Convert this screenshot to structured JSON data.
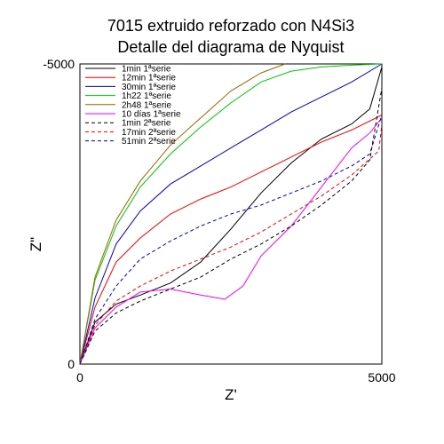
{
  "chart_data": {
    "type": "line",
    "title": [
      "7015 extruido reforzado con N4Si3",
      "Detalle del diagrama de Nyquist"
    ],
    "xlabel": "Z'",
    "ylabel": "Z\"",
    "xlim": [
      0,
      5000
    ],
    "ylim": [
      0,
      -5000
    ],
    "x_ticks": [
      "0",
      "5000"
    ],
    "y_ticks": [
      "0",
      "-5000"
    ],
    "grid": false,
    "legend_position": "top-left",
    "series": [
      {
        "name": "1min 1ªserie",
        "color": "#000000",
        "dash": "solid",
        "points": [
          [
            0,
            0
          ],
          [
            250,
            -700
          ],
          [
            600,
            -1000
          ],
          [
            1000,
            -1150
          ],
          [
            1500,
            -1350
          ],
          [
            2000,
            -1700
          ],
          [
            2500,
            -2250
          ],
          [
            3000,
            -2850
          ],
          [
            3500,
            -3350
          ],
          [
            4000,
            -3750
          ],
          [
            4500,
            -4000
          ],
          [
            4800,
            -4250
          ],
          [
            5000,
            -4950
          ]
        ]
      },
      {
        "name": "12min 1ªserie",
        "color": "#ff0000",
        "dash": "solid",
        "points": [
          [
            0,
            0
          ],
          [
            250,
            -950
          ],
          [
            600,
            -1700
          ],
          [
            1000,
            -2100
          ],
          [
            1500,
            -2500
          ],
          [
            2000,
            -2750
          ],
          [
            2500,
            -2950
          ],
          [
            3000,
            -3200
          ],
          [
            3500,
            -3450
          ],
          [
            4000,
            -3700
          ],
          [
            4500,
            -3900
          ],
          [
            5000,
            -4150
          ]
        ]
      },
      {
        "name": "30min 1ªserie",
        "color": "#0000cc",
        "dash": "solid",
        "points": [
          [
            0,
            0
          ],
          [
            250,
            -1100
          ],
          [
            600,
            -2000
          ],
          [
            1000,
            -2550
          ],
          [
            1500,
            -3000
          ],
          [
            2000,
            -3300
          ],
          [
            2500,
            -3600
          ],
          [
            3000,
            -3900
          ],
          [
            3500,
            -4200
          ],
          [
            4000,
            -4450
          ],
          [
            4500,
            -4700
          ],
          [
            5000,
            -5000
          ]
        ]
      },
      {
        "name": "1h22 1ªserie",
        "color": "#00cc00",
        "dash": "solid",
        "points": [
          [
            0,
            0
          ],
          [
            250,
            -1400
          ],
          [
            600,
            -2300
          ],
          [
            1000,
            -2950
          ],
          [
            1500,
            -3500
          ],
          [
            2000,
            -3950
          ],
          [
            2500,
            -4350
          ],
          [
            3000,
            -4700
          ],
          [
            3500,
            -4880
          ],
          [
            4000,
            -4950
          ],
          [
            4500,
            -4980
          ],
          [
            5000,
            -5000
          ]
        ]
      },
      {
        "name": "2h48 1ªserie",
        "color": "#996600",
        "dash": "solid",
        "points": [
          [
            0,
            0
          ],
          [
            250,
            -1450
          ],
          [
            600,
            -2400
          ],
          [
            1000,
            -3050
          ],
          [
            1500,
            -3650
          ],
          [
            2000,
            -4100
          ],
          [
            2500,
            -4550
          ],
          [
            3000,
            -4850
          ],
          [
            3400,
            -5000
          ]
        ]
      },
      {
        "name": "10 días 1ªserie",
        "color": "#ff00ff",
        "dash": "solid",
        "points": [
          [
            0,
            0
          ],
          [
            250,
            -600
          ],
          [
            600,
            -950
          ],
          [
            1000,
            -1200
          ],
          [
            1500,
            -1250
          ],
          [
            2000,
            -1150
          ],
          [
            2400,
            -1080
          ],
          [
            2700,
            -1300
          ],
          [
            3000,
            -1800
          ],
          [
            3500,
            -2300
          ],
          [
            4000,
            -2950
          ],
          [
            4500,
            -3600
          ],
          [
            4800,
            -3850
          ],
          [
            5000,
            -4100
          ]
        ]
      },
      {
        "name": "1min 2ªserie",
        "color": "#000000",
        "dash": "dashed",
        "points": [
          [
            0,
            0
          ],
          [
            250,
            -550
          ],
          [
            600,
            -850
          ],
          [
            1000,
            -1050
          ],
          [
            1500,
            -1250
          ],
          [
            2000,
            -1450
          ],
          [
            2500,
            -1750
          ],
          [
            3000,
            -2000
          ],
          [
            3500,
            -2300
          ],
          [
            4000,
            -2650
          ],
          [
            4500,
            -3050
          ],
          [
            4800,
            -3400
          ],
          [
            5000,
            -4600
          ]
        ]
      },
      {
        "name": "17min 2ªserie",
        "color": "#ff0000",
        "dash": "dashed",
        "points": [
          [
            0,
            0
          ],
          [
            250,
            -650
          ],
          [
            600,
            -1050
          ],
          [
            1000,
            -1300
          ],
          [
            1500,
            -1550
          ],
          [
            2000,
            -1750
          ],
          [
            2500,
            -1950
          ],
          [
            3000,
            -2200
          ],
          [
            3500,
            -2500
          ],
          [
            4000,
            -2800
          ],
          [
            4500,
            -3150
          ],
          [
            4950,
            -3550
          ],
          [
            5000,
            -4000
          ]
        ]
      },
      {
        "name": "51min 2ªserie",
        "color": "#0000cc",
        "dash": "dashed",
        "points": [
          [
            0,
            0
          ],
          [
            250,
            -750
          ],
          [
            600,
            -1300
          ],
          [
            1000,
            -1750
          ],
          [
            1500,
            -2050
          ],
          [
            2000,
            -2300
          ],
          [
            2500,
            -2500
          ],
          [
            3000,
            -2650
          ],
          [
            3500,
            -2850
          ],
          [
            4000,
            -3050
          ],
          [
            4500,
            -3300
          ],
          [
            4800,
            -3500
          ],
          [
            5000,
            -4150
          ]
        ]
      }
    ]
  }
}
